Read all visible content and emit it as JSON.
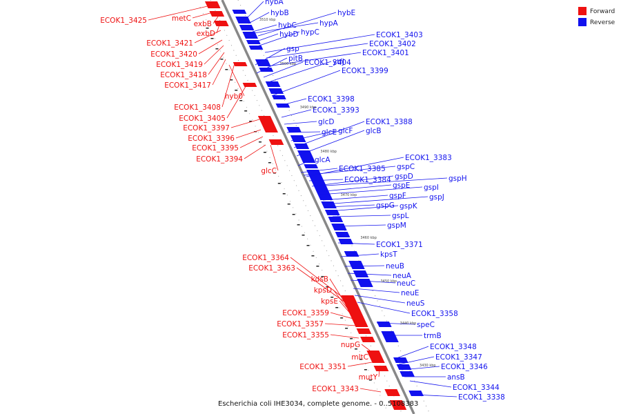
{
  "legend": {
    "forward_label": "Forward",
    "reverse_label": "Reverse",
    "forward_color": "#ee1111",
    "reverse_color": "#1111ee"
  },
  "caption": "Escherichia coli IHE3034, complete genome. - 0..5108383",
  "scale_ticks": [
    "3510 kbp",
    "3500 kbp",
    "3490 kbp",
    "3480 kbp",
    "3470 kbp",
    "3460 kbp",
    "3450 kbp",
    "3440 kbp",
    "3430 kbp"
  ],
  "forward_labels": [
    "ECOK1_3425",
    "metC",
    "exbB",
    "exbD",
    "ECOK1_3421",
    "ECOK1_3420",
    "ECOK1_3419",
    "ECOK1_3418",
    "ECOK1_3417",
    "hyb0",
    "ECOK1_3408",
    "ECOK1_3405",
    "ECOK1_3397",
    "ECOK1_3396",
    "ECOK1_3395",
    "ECOK1_3394",
    "glcC",
    "ECOK1_3364",
    "ECOK1_3363",
    "kdsB",
    "kpsD",
    "kpsE",
    "ECOK1_3359",
    "ECOK1_3357",
    "ECOK1_3355",
    "nupG",
    "mltC",
    "ECOK1_3351",
    "mutY",
    "ECOK1_3343"
  ],
  "reverse_labels": [
    "hybA",
    "hybB",
    "hybC",
    "hybD",
    "hypC",
    "hybE",
    "hypA",
    "ECOK1_3403",
    "ECOK1_3402",
    "ECOK1_3401",
    "gsp",
    "pitB",
    "ECOK1_3404",
    "ytfJ",
    "ECOK1_3399",
    "ECOK1_3398",
    "ECOK1_3393",
    "glcD",
    "glcE",
    "glcF",
    "ECOK1_3388",
    "glcB",
    "glcA",
    "ECOK1_3385",
    "gspC",
    "ECOK1_3383",
    "ECOK1_3384",
    "gspD",
    "gspH",
    "gspE",
    "gspI",
    "gspF",
    "gspJ",
    "gspG",
    "gspK",
    "gspL",
    "gspM",
    "ECOK1_3371",
    "kpsT",
    "neuB",
    "neuA",
    "neuC",
    "neuE",
    "neuS",
    "ECOK1_3358",
    "speC",
    "trmB",
    "ECOK1_3348",
    "ECOK1_3347",
    "ECOK1_3346",
    "ansB",
    "ECOK1_3344",
    "ECOK1_3338"
  ]
}
